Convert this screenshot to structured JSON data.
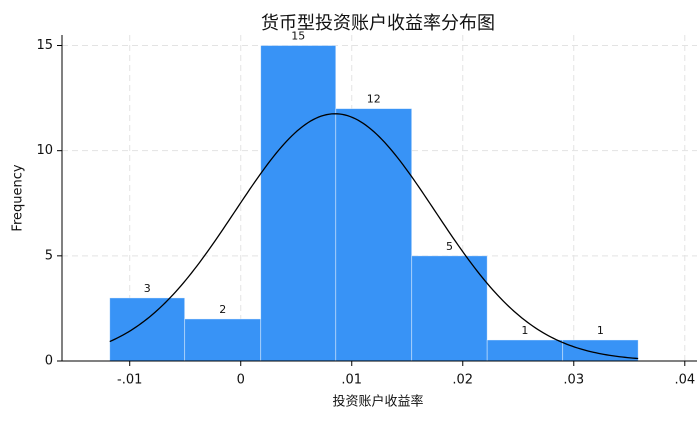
{
  "chart_data": {
    "type": "histogram",
    "title": "货币型投资账户收益率分布图",
    "x_label": "投资账户收益率",
    "y_label": "Frequency",
    "bins": [
      -0.0118,
      -0.00505,
      0.0018,
      0.00856,
      0.0154,
      0.0222,
      0.029,
      0.0358
    ],
    "values": [
      3,
      2,
      15,
      12,
      5,
      1,
      1
    ],
    "color": "#3893f6",
    "curve": {
      "mean": 0.0085,
      "sd": 0.009,
      "color": "#000000"
    },
    "xlim": [
      -0.0161,
      0.0411
    ],
    "ylim": [
      0,
      15.5
    ],
    "xticks": [
      {
        "value": -0.01,
        "label": "-.01"
      },
      0,
      {
        "value": 0.01,
        "label": ".01"
      },
      {
        "value": 0.02,
        "label": ".02"
      },
      {
        "value": 0.03,
        "label": ".03"
      },
      {
        "value": 0.04,
        "label": ".04"
      }
    ],
    "yticks": [
      0,
      5,
      10,
      15
    ],
    "grid": true
  }
}
